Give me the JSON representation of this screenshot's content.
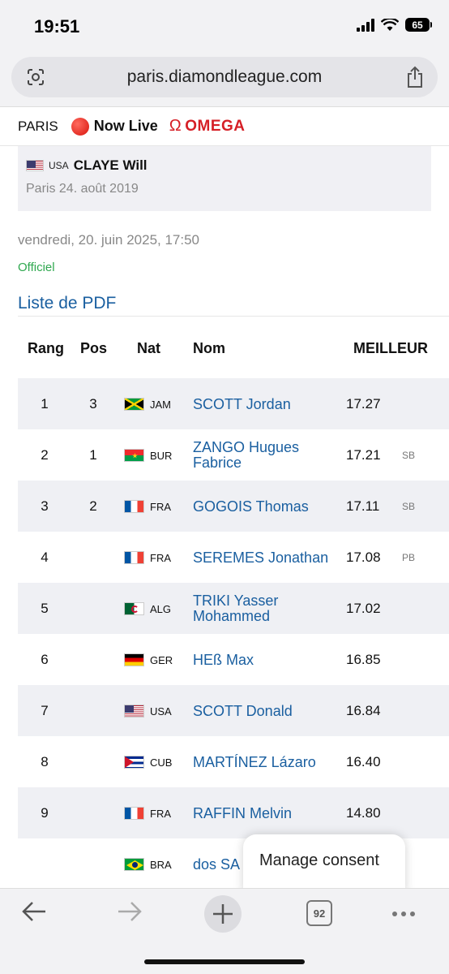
{
  "status": {
    "time": "19:51",
    "battery": "65"
  },
  "browser": {
    "url": "paris.diamondleague.com",
    "tab_count": "92"
  },
  "header": {
    "brand": "PARIS",
    "live": "Now Live",
    "sponsor": "OMEGA"
  },
  "record": {
    "nat": "USA",
    "athlete": "CLAYE Will",
    "place_date": "Paris 24. août 2019"
  },
  "event": {
    "datetime": "vendredi, 20. juin 2025, 17:50",
    "status": "Officiel",
    "pdf_link": "Liste de PDF"
  },
  "table": {
    "headers": {
      "rank": "Rang",
      "pos": "Pos",
      "nat": "Nat",
      "name": "Nom",
      "best": "MEILLEUR"
    },
    "rows": [
      {
        "rank": "1",
        "pos": "3",
        "flag": "jam",
        "nat": "JAM",
        "name": "SCOTT Jordan",
        "mark": "17.27",
        "note": ""
      },
      {
        "rank": "2",
        "pos": "1",
        "flag": "bur",
        "nat": "BUR",
        "name": "ZANGO Hugues Fabrice",
        "mark": "17.21",
        "note": "SB"
      },
      {
        "rank": "3",
        "pos": "2",
        "flag": "fra",
        "nat": "FRA",
        "name": "GOGOIS Thomas",
        "mark": "17.11",
        "note": "SB"
      },
      {
        "rank": "4",
        "pos": "",
        "flag": "fra",
        "nat": "FRA",
        "name": "SEREMES Jonathan",
        "mark": "17.08",
        "note": "PB"
      },
      {
        "rank": "5",
        "pos": "",
        "flag": "alg",
        "nat": "ALG",
        "name": "TRIKI Yasser Mohammed",
        "mark": "17.02",
        "note": ""
      },
      {
        "rank": "6",
        "pos": "",
        "flag": "ger",
        "nat": "GER",
        "name": "HEß Max",
        "mark": "16.85",
        "note": ""
      },
      {
        "rank": "7",
        "pos": "",
        "flag": "usa",
        "nat": "USA",
        "name": "SCOTT Donald",
        "mark": "16.84",
        "note": ""
      },
      {
        "rank": "8",
        "pos": "",
        "flag": "cub",
        "nat": "CUB",
        "name": "MARTÍNEZ Lázaro",
        "mark": "16.40",
        "note": ""
      },
      {
        "rank": "9",
        "pos": "",
        "flag": "fra",
        "nat": "FRA",
        "name": "RAFFIN Melvin",
        "mark": "14.80",
        "note": ""
      },
      {
        "rank": "",
        "pos": "",
        "flag": "bra",
        "nat": "BRA",
        "name": "dos SA",
        "mark": "",
        "note": ""
      }
    ]
  },
  "consent": {
    "label": "Manage consent"
  },
  "colors": {
    "link": "#1a5fa0",
    "official": "#2fa84f",
    "live_red": "#d8140c",
    "omega_red": "#d61f26",
    "row_alt": "#eff0f4"
  }
}
